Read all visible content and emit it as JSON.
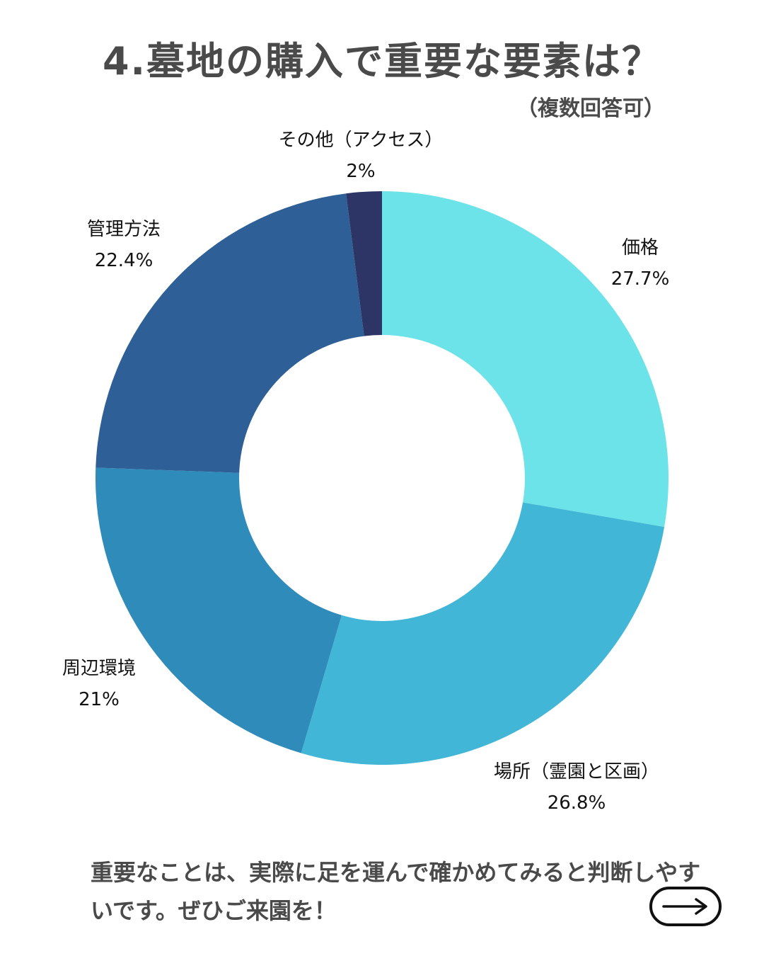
{
  "header": {
    "title": "4.墓地の購入で重要な要素は？",
    "subtitle": "（複数回答可）"
  },
  "chart_data": {
    "type": "pie",
    "donut": true,
    "slices": [
      {
        "label": "価格",
        "value": 27.7,
        "value_label": "27.7%",
        "color": "#6be3e8"
      },
      {
        "label": "場所（霊園と区画）",
        "value": 26.8,
        "value_label": "26.8%",
        "color": "#42b6d6"
      },
      {
        "label": "周辺環境",
        "value": 21,
        "value_label": "21%",
        "color": "#2e8bba"
      },
      {
        "label": "管理方法",
        "value": 22.4,
        "value_label": "22.4%",
        "color": "#2e5f96"
      },
      {
        "label": "その他（アクセス）",
        "value": 2,
        "value_label": "2%",
        "color": "#2d3466"
      }
    ]
  },
  "footer": {
    "message": "重要なことは、実際に足を運んで確かめてみると判断しやすいです。ぜひご来園を！",
    "next_icon": "arrow-right-icon"
  }
}
